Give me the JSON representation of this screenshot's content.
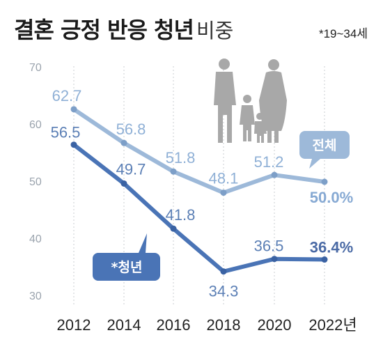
{
  "title": "결혼 긍정 반응 청년",
  "title_suffix": "비중",
  "note": "*19~34세",
  "x_unit": "년",
  "colors": {
    "overall": "#9db9d9",
    "youth": "#4a74b6",
    "grid": "#c8ccd2",
    "silhouette": "#a8a8a8"
  },
  "icons": [
    "family-silhouette-icon"
  ],
  "chart_data": {
    "type": "line",
    "x": [
      2012,
      2014,
      2016,
      2018,
      2020,
      2022
    ],
    "ylim": [
      30,
      70
    ],
    "yticks": [
      30,
      40,
      50,
      60,
      70
    ],
    "grid": "vertical dotted",
    "series": [
      {
        "name": "전체",
        "values": [
          62.7,
          56.8,
          51.8,
          48.1,
          51.2,
          50.0
        ],
        "labels": [
          "62.7",
          "56.8",
          "51.8",
          "48.1",
          "51.2",
          "50.0%"
        ]
      },
      {
        "name": "*청년",
        "values": [
          56.5,
          49.7,
          41.8,
          34.3,
          36.5,
          36.4
        ],
        "labels": [
          "56.5",
          "49.7",
          "41.8",
          "34.3",
          "36.5",
          "36.4%"
        ]
      }
    ]
  }
}
